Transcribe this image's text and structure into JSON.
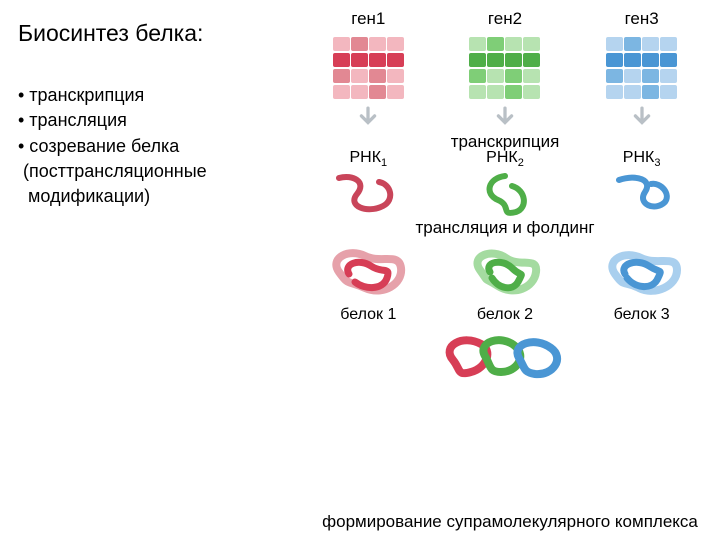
{
  "title": "Биосинтез белка:",
  "bullets": [
    "• транскрипция",
    "• трансляция",
    "• созревание белка",
    " (посттрансляционные",
    "  модификации)"
  ],
  "diagram": {
    "genes": {
      "labels": [
        "ген1",
        "ген2",
        "ген3"
      ],
      "colors": {
        "gene1": {
          "light": "#f3b7bf",
          "dark": "#d73e56",
          "alt": "#e28893"
        },
        "gene2": {
          "light": "#b7e3b1",
          "dark": "#4fae48",
          "alt": "#7fce77"
        },
        "gene3": {
          "light": "#b5d4ef",
          "dark": "#4a96d4",
          "alt": "#7cb6e2"
        }
      }
    },
    "arrow_color": "#b9c0c6",
    "step_transcription": "транскрипция",
    "rnas": {
      "labels": [
        "РНК",
        "РНК",
        "РНК"
      ],
      "subs": [
        "1",
        "2",
        "3"
      ],
      "colors": [
        "#c9455a",
        "#4fae48",
        "#4a96d4"
      ]
    },
    "step_translation": "трансляция и фолдинг",
    "proteins": {
      "labels": [
        "белок 1",
        "белок 2",
        "белок 3"
      ],
      "colors": {
        "p1": [
          "#d73e56",
          "#e6a1aa"
        ],
        "p2": [
          "#4fae48",
          "#a4dba0"
        ],
        "p3": [
          "#4a96d4",
          "#a9cfee"
        ]
      }
    },
    "step_complex": "формирование супрамолекулярного комплекса"
  },
  "fonts": {
    "title": 23,
    "body": 18,
    "label": 17,
    "small": 16
  }
}
